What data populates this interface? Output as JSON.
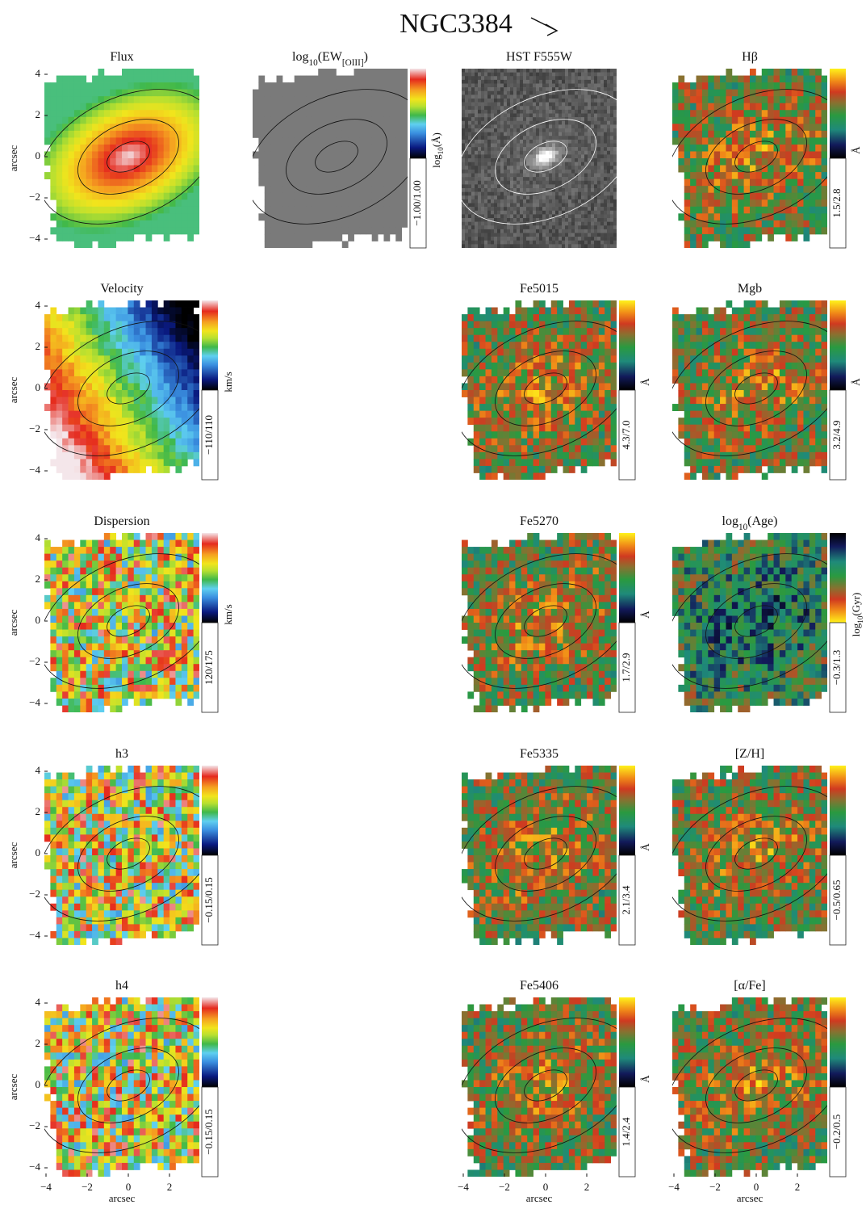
{
  "title": "NGC3384",
  "axis_label": "arcsec",
  "ticks_y": [
    {
      "value": 4,
      "label": "4"
    },
    {
      "value": 2,
      "label": "2"
    },
    {
      "value": 0,
      "label": "0"
    },
    {
      "value": -2,
      "label": "−2"
    },
    {
      "value": -4,
      "label": "−4"
    }
  ],
  "ticks_x": [
    {
      "value": -4,
      "label": "−4"
    },
    {
      "value": -2,
      "label": "−2"
    },
    {
      "value": 0,
      "label": "0"
    },
    {
      "value": 2,
      "label": "2"
    }
  ],
  "rows": [
    [
      {
        "title": [
          {
            "text": "Flux"
          }
        ],
        "map": "flux"
      },
      {
        "title": [
          {
            "text": "log"
          },
          {
            "text": "10",
            "sub": true
          },
          {
            "text": "(EW"
          },
          {
            "text": "[OIII]",
            "sub": true
          },
          {
            "text": ")"
          }
        ],
        "map": "ew",
        "colorbar": {
          "cmap": "sauron",
          "range": "−1.00/1.00",
          "unit": [
            {
              "text": "log"
            },
            {
              "text": "10",
              "sub": true
            },
            {
              "text": "(Å)"
            }
          ]
        }
      },
      {
        "title": [
          {
            "text": "HST F555W"
          }
        ],
        "map": "hst"
      },
      {
        "title": [
          {
            "text": "Hβ"
          }
        ],
        "map": "index",
        "colorbar": {
          "cmap": "index",
          "range": "1.5/2.8",
          "unit": [
            {
              "text": "Å"
            }
          ]
        }
      }
    ],
    [
      {
        "title": [
          {
            "text": "Velocity"
          }
        ],
        "map": "velocity",
        "colorbar": {
          "cmap": "sauron",
          "range": "−110/110",
          "unit": [
            {
              "text": "km/s"
            }
          ]
        }
      },
      null,
      {
        "title": [
          {
            "text": "Fe5015"
          }
        ],
        "map": "index",
        "colorbar": {
          "cmap": "index",
          "range": "4.3/7.0",
          "unit": [
            {
              "text": "Å"
            }
          ]
        }
      },
      {
        "title": [
          {
            "text": "Mgb"
          }
        ],
        "map": "index",
        "colorbar": {
          "cmap": "index",
          "range": "3.2/4.9",
          "unit": [
            {
              "text": "Å"
            }
          ]
        }
      }
    ],
    [
      {
        "title": [
          {
            "text": "Dispersion"
          }
        ],
        "map": "noise",
        "colorbar": {
          "cmap": "sauron",
          "range": "120/175",
          "unit": [
            {
              "text": "km/s"
            }
          ]
        }
      },
      null,
      {
        "title": [
          {
            "text": "Fe5270"
          }
        ],
        "map": "index",
        "colorbar": {
          "cmap": "index",
          "range": "1.7/2.9",
          "unit": [
            {
              "text": "Å"
            }
          ]
        }
      },
      {
        "title": [
          {
            "text": "log"
          },
          {
            "text": "10",
            "sub": true
          },
          {
            "text": "(Age)"
          }
        ],
        "map": "index",
        "colorbar": {
          "cmap": "age",
          "range": "−0.3/1.3",
          "unit": [
            {
              "text": "log"
            },
            {
              "text": "10",
              "sub": true
            },
            {
              "text": "(Gyr)"
            }
          ]
        }
      }
    ],
    [
      {
        "title": [
          {
            "text": "h3"
          }
        ],
        "map": "noise",
        "colorbar": {
          "cmap": "sauron",
          "range": "−0.15/0.15"
        }
      },
      null,
      {
        "title": [
          {
            "text": "Fe5335"
          }
        ],
        "map": "index",
        "colorbar": {
          "cmap": "index",
          "range": "2.1/3.4",
          "unit": [
            {
              "text": "Å"
            }
          ]
        }
      },
      {
        "title": [
          {
            "text": "[Z/H]"
          }
        ],
        "map": "index",
        "colorbar": {
          "cmap": "index",
          "range": "−0.5/0.65"
        }
      }
    ],
    [
      {
        "title": [
          {
            "text": "h4"
          }
        ],
        "map": "noise",
        "colorbar": {
          "cmap": "sauron",
          "range": "−0.15/0.15"
        }
      },
      null,
      {
        "title": [
          {
            "text": "Fe5406"
          }
        ],
        "map": "index",
        "colorbar": {
          "cmap": "index",
          "range": "1.4/2.4",
          "unit": [
            {
              "text": "Å"
            }
          ]
        }
      },
      {
        "title": [
          {
            "text": "[α/Fe]"
          }
        ],
        "map": "index",
        "colorbar": {
          "cmap": "index",
          "range": "−0.2/0.5"
        }
      }
    ]
  ]
}
